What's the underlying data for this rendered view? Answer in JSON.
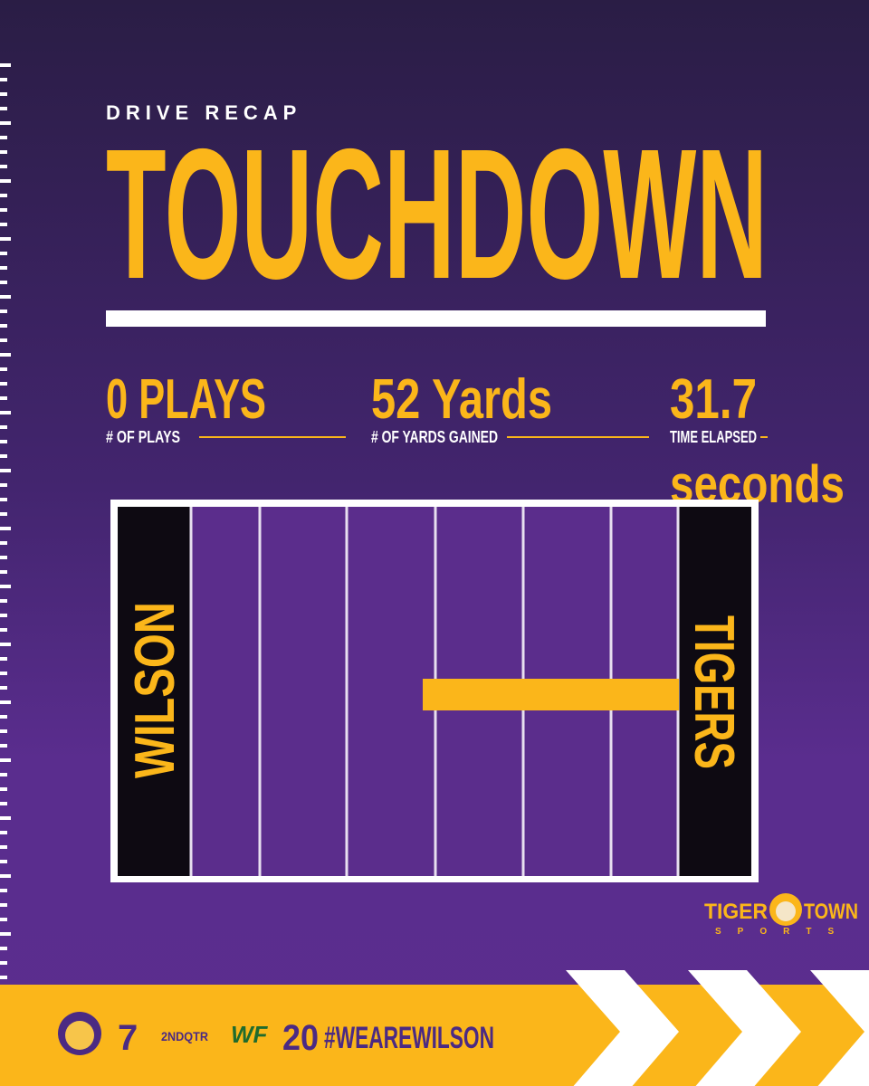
{
  "header": {
    "kicker": "DRIVE RECAP",
    "title": "TOUCHDOWN"
  },
  "stats": [
    {
      "value": "0 PLAYS",
      "label": "# OF PLAYS"
    },
    {
      "value": "52 Yards",
      "label": "# OF YARDS GAINED"
    },
    {
      "value": "31.7",
      "unit": "seconds",
      "label": "TIME ELAPSED"
    }
  ],
  "field": {
    "left_endzone": "WILSON",
    "right_endzone": "TIGERS"
  },
  "brand": {
    "left": "TIGER",
    "right": "TOWN",
    "sub": "SPORTS"
  },
  "footer": {
    "home_score": "7",
    "period": "2NDQTR",
    "away_logo": "WF",
    "away_score": "20",
    "hashtag": "#WEAREWILSON"
  }
}
